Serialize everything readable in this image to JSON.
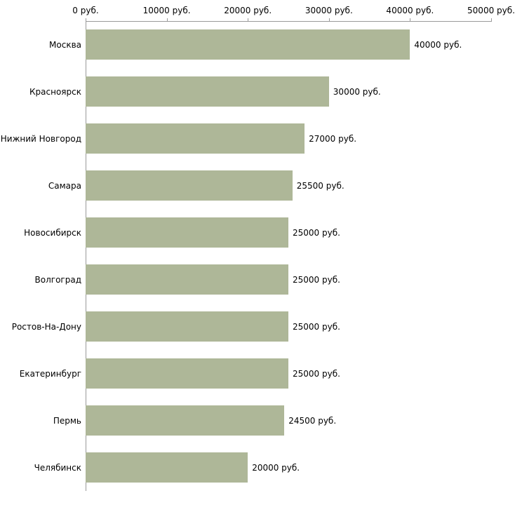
{
  "chart_data": {
    "type": "bar",
    "orientation": "horizontal",
    "title": "",
    "xlabel": "",
    "ylabel": "",
    "categories": [
      "Москва",
      "Красноярск",
      "Нижний Новгород",
      "Самара",
      "Новосибирск",
      "Волгоград",
      "Ростов-На-Дону",
      "Екатеринбург",
      "Пермь",
      "Челябинск"
    ],
    "values": [
      40000,
      30000,
      27000,
      25500,
      25000,
      25000,
      25000,
      25000,
      24500,
      20000
    ],
    "value_labels": [
      "40000 руб.",
      "30000 руб.",
      "27000 руб.",
      "25500 руб.",
      "25000 руб.",
      "25000 руб.",
      "25000 руб.",
      "25000 руб.",
      "24500 руб.",
      "20000 руб."
    ],
    "x_ticks": [
      "0 руб.",
      "10000 руб.",
      "20000 руб.",
      "30000 руб.",
      "40000 руб.",
      "50000 руб."
    ],
    "x_tick_values": [
      0,
      10000,
      20000,
      30000,
      40000,
      50000
    ],
    "xlim": [
      0,
      50000
    ],
    "grid": false,
    "legend": "none",
    "bar_color": "#aeb798",
    "axis_color": "#999999",
    "text_color": "#000000"
  }
}
